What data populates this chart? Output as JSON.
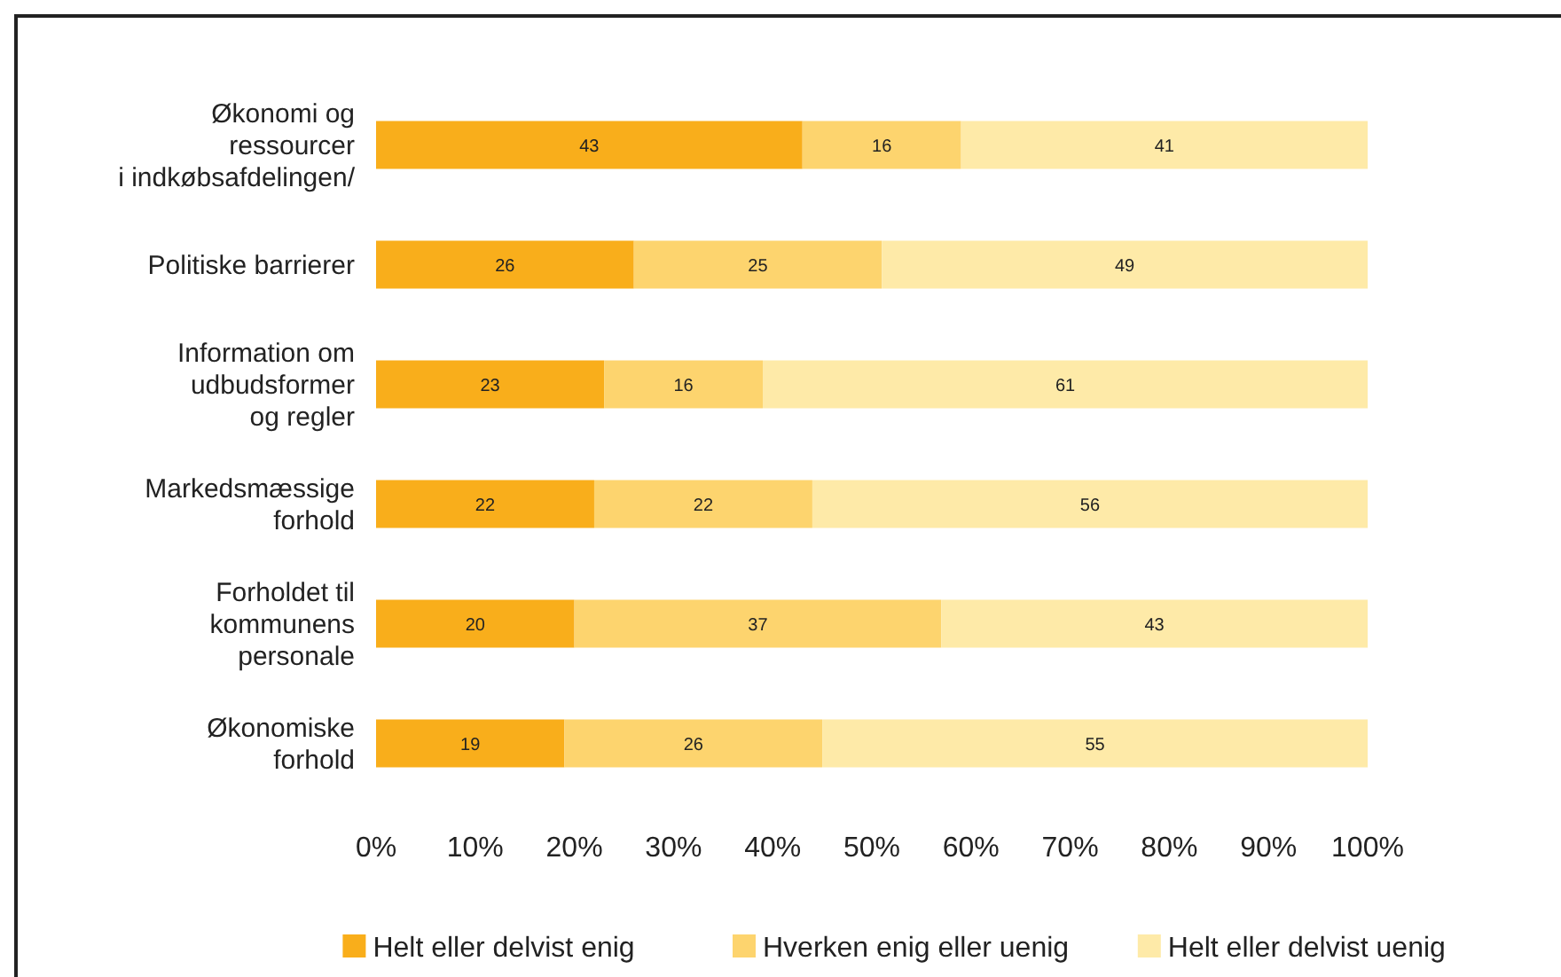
{
  "chart_data": {
    "type": "bar",
    "orientation": "horizontal",
    "stacked": true,
    "data_labels": true,
    "legend": "bottom",
    "grid": false,
    "categories": [
      "Økonomi og\nressourcer\ni indkøbsafdelingen/",
      "Politiske barrierer",
      "Information om\nudbudsformer\nog regler",
      "Markedsmæssige\nforhold",
      "Forholdet til\nkommunens\npersonale",
      "Økonomiske\nforhold"
    ],
    "series": [
      {
        "name": "Helt eller delvist enig",
        "color": "#f9ae1b",
        "values": [
          43,
          26,
          23,
          22,
          20,
          19
        ]
      },
      {
        "name": "Hverken enig eller uenig",
        "color": "#fdd46e",
        "values": [
          16,
          25,
          16,
          22,
          37,
          26
        ]
      },
      {
        "name": "Helt eller delvist uenig",
        "color": "#feeaa8",
        "values": [
          41,
          49,
          61,
          56,
          43,
          55
        ]
      }
    ],
    "xlim": [
      0,
      100
    ],
    "xticks": [
      {
        "value": 0,
        "label": "0%"
      },
      {
        "value": 10,
        "label": "10%"
      },
      {
        "value": 20,
        "label": "20%"
      },
      {
        "value": 30,
        "label": "30%"
      },
      {
        "value": 40,
        "label": "40%"
      },
      {
        "value": 50,
        "label": "50%"
      },
      {
        "value": 60,
        "label": "60%"
      },
      {
        "value": 70,
        "label": "70%"
      },
      {
        "value": 80,
        "label": "80%"
      },
      {
        "value": 90,
        "label": "90%"
      },
      {
        "value": 100,
        "label": "100%"
      }
    ]
  }
}
